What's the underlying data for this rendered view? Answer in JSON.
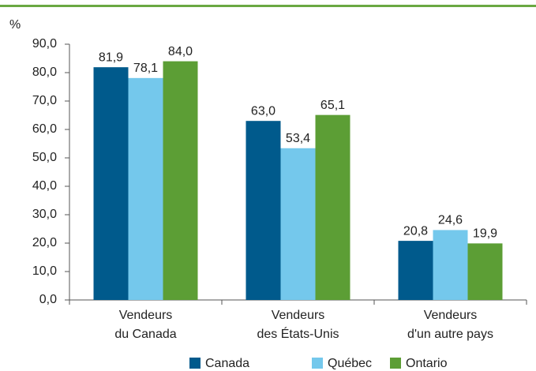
{
  "chart_data": {
    "type": "bar",
    "y_axis_label": "%",
    "categories": [
      "Vendeurs\ndu Canada",
      "Vendeurs\ndes États-Unis",
      "Vendeurs\nd'un autre pays"
    ],
    "series": [
      {
        "name": "Canada",
        "color": "#005a8c",
        "values": [
          81.9,
          63.0,
          20.8
        ],
        "value_labels": [
          "81,9",
          "63,0",
          "20,8"
        ]
      },
      {
        "name": "Québec",
        "color": "#74c8ec",
        "values": [
          78.1,
          53.4,
          24.6
        ],
        "value_labels": [
          "78,1",
          "53,4",
          "24,6"
        ]
      },
      {
        "name": "Ontario",
        "color": "#5c9e35",
        "values": [
          84.0,
          65.1,
          19.9
        ],
        "value_labels": [
          "84,0",
          "65,1",
          "19,9"
        ]
      }
    ],
    "ylim": [
      0,
      90
    ],
    "yticks": [
      {
        "value": 0,
        "label": "0,0"
      },
      {
        "value": 10,
        "label": "10,0"
      },
      {
        "value": 20,
        "label": "20,0"
      },
      {
        "value": 30,
        "label": "30,0"
      },
      {
        "value": 40,
        "label": "40,0"
      },
      {
        "value": 50,
        "label": "50,0"
      },
      {
        "value": 60,
        "label": "60,0"
      },
      {
        "value": 70,
        "label": "70,0"
      },
      {
        "value": 80,
        "label": "80,0"
      },
      {
        "value": 90,
        "label": "90,0"
      }
    ],
    "legend": "bottom"
  }
}
